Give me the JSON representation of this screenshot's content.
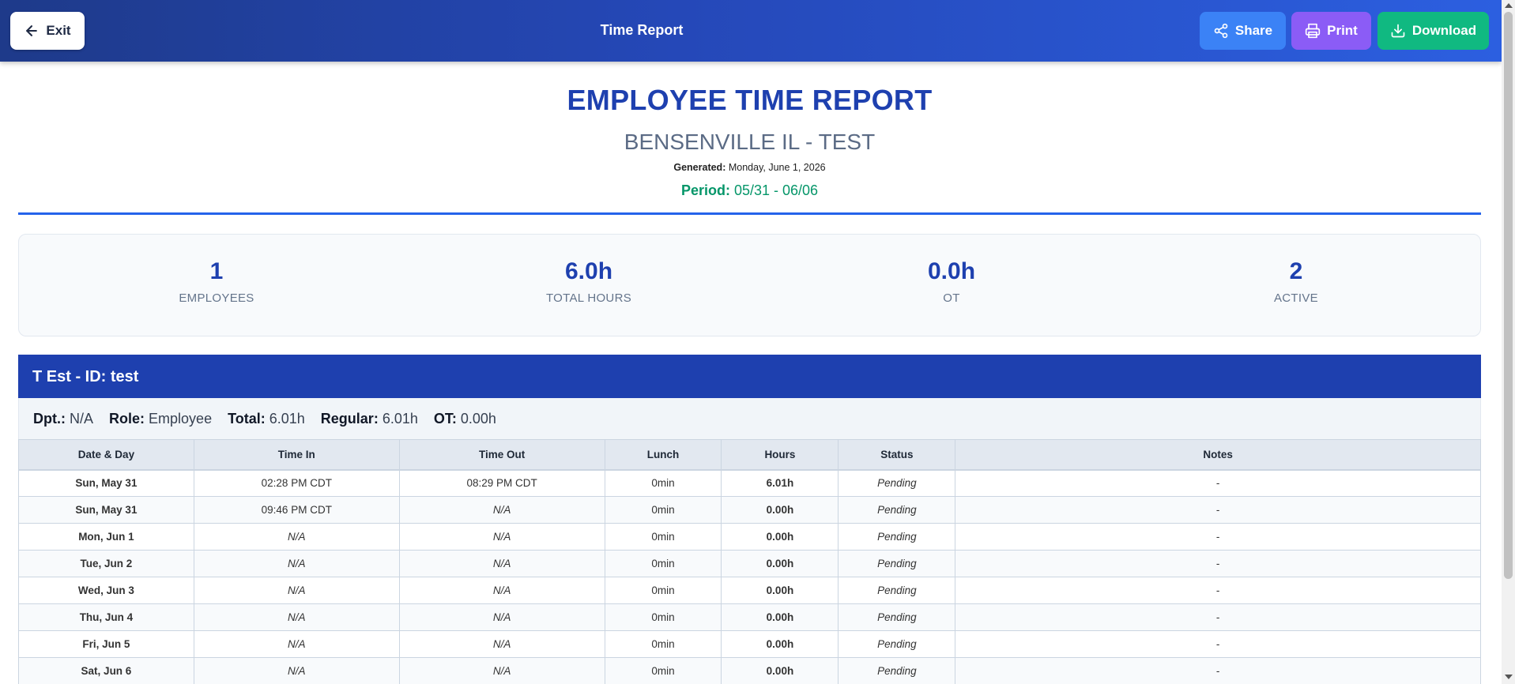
{
  "topbar": {
    "exit_label": "Exit",
    "title": "Time Report",
    "share_label": "Share",
    "print_label": "Print",
    "download_label": "Download"
  },
  "report": {
    "title": "EMPLOYEE TIME REPORT",
    "subtitle": "BENSENVILLE IL - TEST",
    "generated_label": "Generated:",
    "generated_value": "Monday, June 1, 2026",
    "period_label": "Period:",
    "period_value": "05/31 - 06/06"
  },
  "stats": [
    {
      "value": "1",
      "label": "EMPLOYEES"
    },
    {
      "value": "6.0h",
      "label": "TOTAL HOURS"
    },
    {
      "value": "0.0h",
      "label": "OT"
    },
    {
      "value": "2",
      "label": "ACTIVE"
    }
  ],
  "employee": {
    "header": "T Est - ID: test",
    "dept_label": "Dpt.:",
    "dept_value": "N/A",
    "role_label": "Role:",
    "role_value": "Employee",
    "total_label": "Total:",
    "total_value": "6.01h",
    "regular_label": "Regular:",
    "regular_value": "6.01h",
    "ot_label": "OT:",
    "ot_value": "0.00h"
  },
  "table": {
    "columns": [
      "Date & Day",
      "Time In",
      "Time Out",
      "Lunch",
      "Hours",
      "Status",
      "Notes"
    ],
    "rows": [
      {
        "date": "Sun, May 31",
        "time_in": "02:28 PM CDT",
        "time_out": "08:29 PM CDT",
        "lunch": "0min",
        "hours": "6.01h",
        "status": "Pending",
        "notes": "-"
      },
      {
        "date": "Sun, May 31",
        "time_in": "09:46 PM CDT",
        "time_out": "N/A",
        "lunch": "0min",
        "hours": "0.00h",
        "status": "Pending",
        "notes": "-"
      },
      {
        "date": "Mon, Jun 1",
        "time_in": "N/A",
        "time_out": "N/A",
        "lunch": "0min",
        "hours": "0.00h",
        "status": "Pending",
        "notes": "-"
      },
      {
        "date": "Tue, Jun 2",
        "time_in": "N/A",
        "time_out": "N/A",
        "lunch": "0min",
        "hours": "0.00h",
        "status": "Pending",
        "notes": "-"
      },
      {
        "date": "Wed, Jun 3",
        "time_in": "N/A",
        "time_out": "N/A",
        "lunch": "0min",
        "hours": "0.00h",
        "status": "Pending",
        "notes": "-"
      },
      {
        "date": "Thu, Jun 4",
        "time_in": "N/A",
        "time_out": "N/A",
        "lunch": "0min",
        "hours": "0.00h",
        "status": "Pending",
        "notes": "-"
      },
      {
        "date": "Fri, Jun 5",
        "time_in": "N/A",
        "time_out": "N/A",
        "lunch": "0min",
        "hours": "0.00h",
        "status": "Pending",
        "notes": "-"
      },
      {
        "date": "Sat, Jun 6",
        "time_in": "N/A",
        "time_out": "N/A",
        "lunch": "0min",
        "hours": "0.00h",
        "status": "Pending",
        "notes": "-"
      }
    ]
  },
  "colors": {
    "primary": "#1e40af",
    "share": "#3b82f6",
    "print": "#8b5cf6",
    "download": "#10b981",
    "lunch": "#dc2626",
    "hours": "#059669"
  },
  "icons": {
    "exit": "arrow-left-icon",
    "share": "share-icon",
    "print": "printer-icon",
    "download": "download-icon"
  }
}
